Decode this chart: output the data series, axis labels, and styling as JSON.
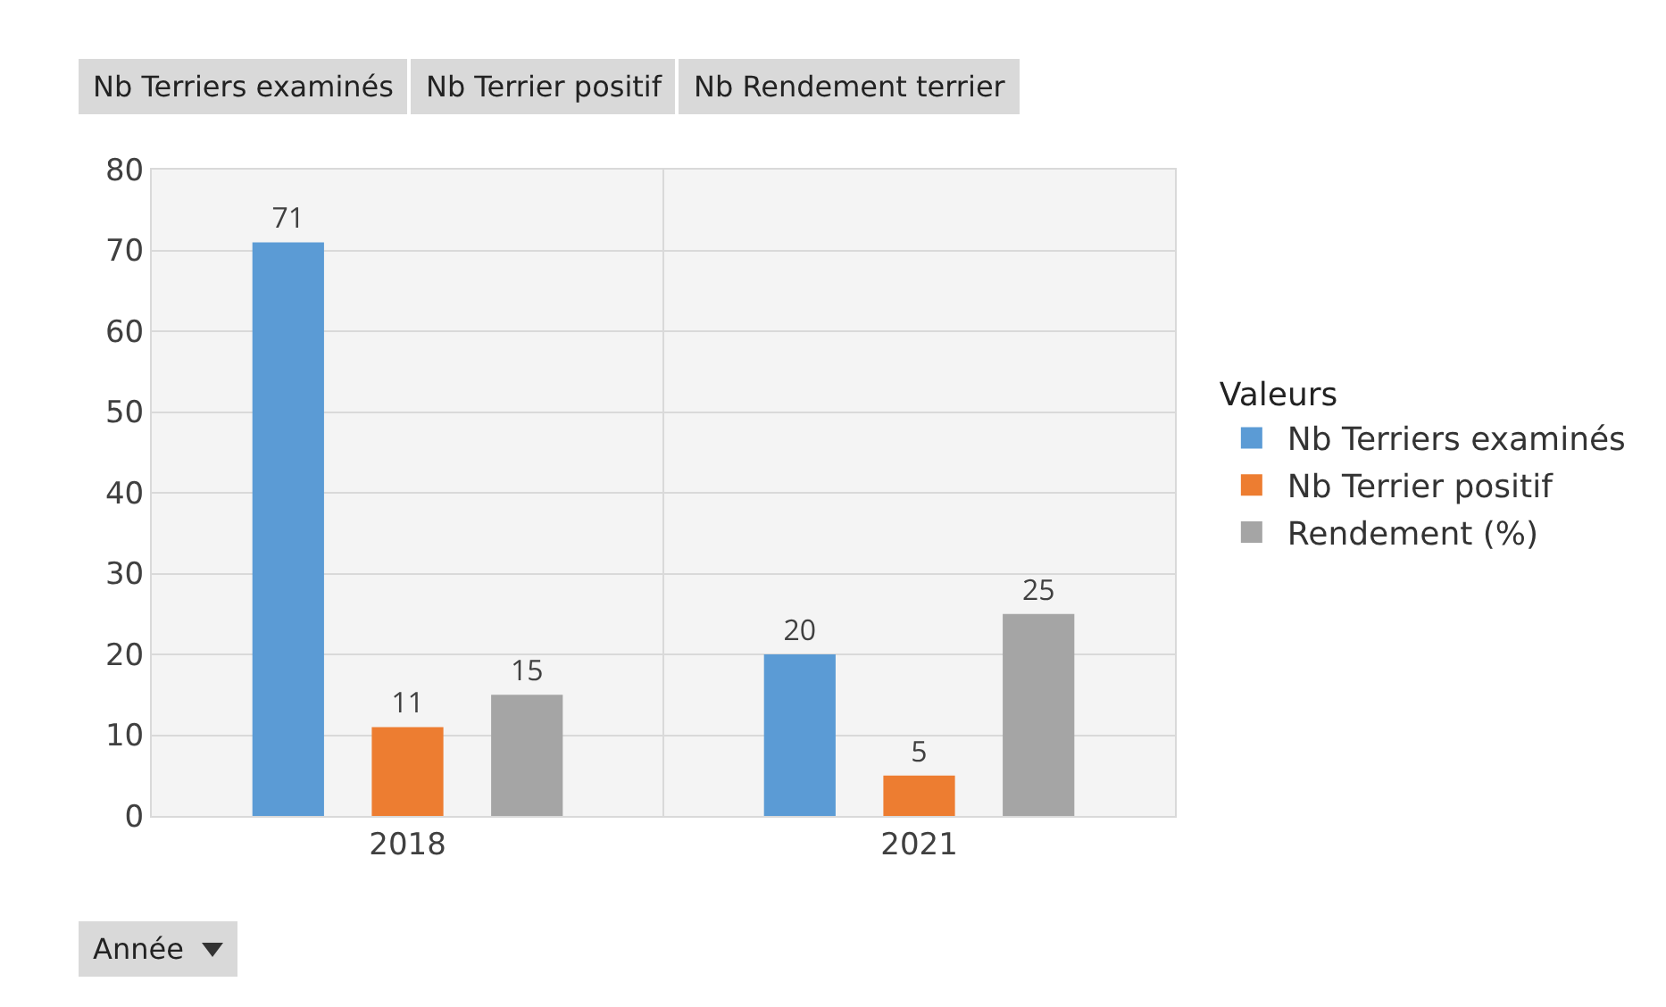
{
  "chart_data": {
    "type": "bar",
    "categories": [
      "2018",
      "2021"
    ],
    "series": [
      {
        "name": "Nb Terriers examinés",
        "color": "#5b9bd5",
        "values": [
          71,
          20
        ]
      },
      {
        "name": "Nb Terrier positif",
        "color": "#ed7d31",
        "values": [
          11,
          5
        ]
      },
      {
        "name": "Rendement (%)",
        "color": "#a5a5a5",
        "values": [
          15,
          25
        ]
      }
    ],
    "ylim": [
      0,
      80
    ],
    "yticks": [
      0,
      10,
      20,
      30,
      40,
      50,
      60,
      70,
      80
    ],
    "grid": true,
    "legend": "right",
    "legend_title": "Valeurs",
    "data_labels": true,
    "annotations": [
      "Nb Terriers examinés",
      "Nb Terrier positif",
      "Nb Rendement terrier",
      "Année"
    ]
  }
}
